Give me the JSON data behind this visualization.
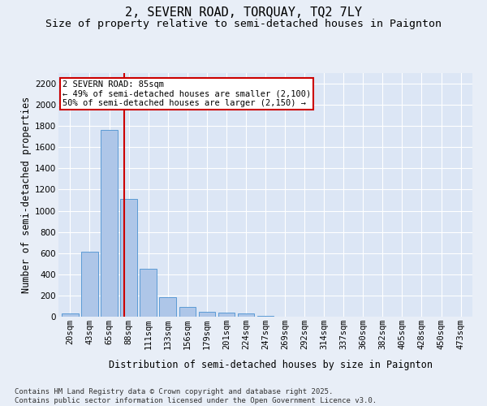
{
  "title": "2, SEVERN ROAD, TORQUAY, TQ2 7LY",
  "subtitle": "Size of property relative to semi-detached houses in Paignton",
  "xlabel": "Distribution of semi-detached houses by size in Paignton",
  "ylabel": "Number of semi-detached properties",
  "categories": [
    "20sqm",
    "43sqm",
    "65sqm",
    "88sqm",
    "111sqm",
    "133sqm",
    "156sqm",
    "179sqm",
    "201sqm",
    "224sqm",
    "247sqm",
    "269sqm",
    "292sqm",
    "314sqm",
    "337sqm",
    "360sqm",
    "382sqm",
    "405sqm",
    "428sqm",
    "450sqm",
    "473sqm"
  ],
  "values": [
    30,
    610,
    1760,
    1110,
    455,
    185,
    90,
    47,
    40,
    28,
    10,
    0,
    0,
    0,
    0,
    0,
    0,
    0,
    0,
    0,
    0
  ],
  "bar_color": "#aec6e8",
  "bar_edge_color": "#5b9bd5",
  "vline_color": "#cc0000",
  "annotation_line1": "2 SEVERN ROAD: 85sqm",
  "annotation_line2": "← 49% of semi-detached houses are smaller (2,100)",
  "annotation_line3": "50% of semi-detached houses are larger (2,150) →",
  "annotation_box_color": "#ffffff",
  "annotation_box_edge": "#cc0000",
  "ylim": [
    0,
    2300
  ],
  "yticks": [
    0,
    200,
    400,
    600,
    800,
    1000,
    1200,
    1400,
    1600,
    1800,
    2000,
    2200
  ],
  "background_color": "#e8eef7",
  "plot_background": "#dce6f5",
  "footer_text": "Contains HM Land Registry data © Crown copyright and database right 2025.\nContains public sector information licensed under the Open Government Licence v3.0.",
  "title_fontsize": 11,
  "subtitle_fontsize": 9.5,
  "axis_label_fontsize": 8.5,
  "tick_fontsize": 7.5,
  "annotation_fontsize": 7.5,
  "footer_fontsize": 6.5
}
